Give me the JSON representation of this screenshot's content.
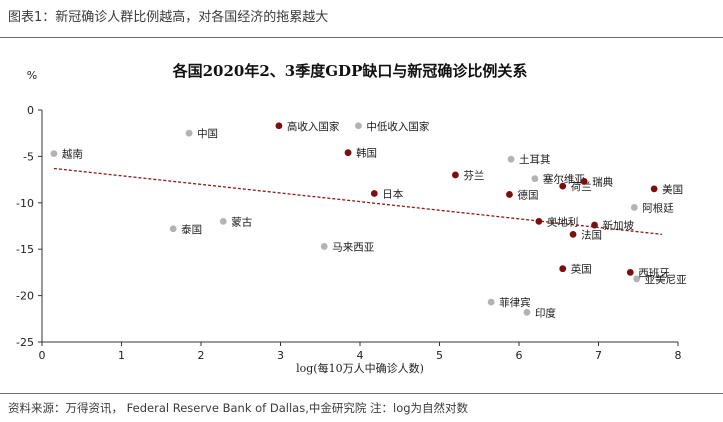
{
  "caption": "图表1：新冠确诊人群比例越高，对各国经济的拖累越大",
  "source": "资料来源：万得资讯， Federal Reserve Bank of Dallas,中金研究院 注：log为自然对数",
  "chart_data": {
    "type": "scatter",
    "title": "各国2020年2、3季度GDP缺口与新冠确诊比例关系",
    "xlabel": "log(每10万人中确诊人数)",
    "ylabel": "%",
    "xlim": [
      0,
      8
    ],
    "ylim": [
      -25,
      0
    ],
    "xticks": [
      0,
      1,
      2,
      3,
      4,
      5,
      6,
      7,
      8
    ],
    "yticks": [
      0,
      -5,
      -10,
      -15,
      -20,
      -25
    ],
    "grid": false,
    "trendline": {
      "x": [
        0.15,
        7.8
      ],
      "y": [
        -6.3,
        -13.4
      ],
      "color": "#8b1a1a"
    },
    "colors": {
      "dark": "#7b0f0f",
      "light": "#b3b3b3"
    },
    "points": [
      {
        "label": "越南",
        "x": 0.15,
        "y": -4.7,
        "group": "light"
      },
      {
        "label": "中国",
        "x": 1.85,
        "y": -2.5,
        "group": "light"
      },
      {
        "label": "泰国",
        "x": 1.65,
        "y": -12.8,
        "group": "light"
      },
      {
        "label": "蒙古",
        "x": 2.28,
        "y": -12.0,
        "group": "light"
      },
      {
        "label": "高收入国家",
        "x": 2.98,
        "y": -1.7,
        "group": "dark"
      },
      {
        "label": "中低收入国家",
        "x": 3.98,
        "y": -1.7,
        "group": "light"
      },
      {
        "label": "韩国",
        "x": 3.85,
        "y": -4.6,
        "group": "dark"
      },
      {
        "label": "日本",
        "x": 4.18,
        "y": -9.0,
        "group": "dark"
      },
      {
        "label": "马来西亚",
        "x": 3.55,
        "y": -14.7,
        "group": "light"
      },
      {
        "label": "芬兰",
        "x": 5.2,
        "y": -7.0,
        "group": "dark"
      },
      {
        "label": "土耳其",
        "x": 5.9,
        "y": -5.3,
        "group": "light"
      },
      {
        "label": "塞尔维亚",
        "x": 6.2,
        "y": -7.4,
        "group": "light"
      },
      {
        "label": "德国",
        "x": 5.88,
        "y": -9.1,
        "group": "dark"
      },
      {
        "label": "荷兰",
        "x": 6.55,
        "y": -8.2,
        "group": "dark"
      },
      {
        "label": "瑞典",
        "x": 6.82,
        "y": -7.7,
        "group": "dark"
      },
      {
        "label": "美国",
        "x": 7.7,
        "y": -8.5,
        "group": "dark"
      },
      {
        "label": "阿根廷",
        "x": 7.45,
        "y": -10.5,
        "group": "light"
      },
      {
        "label": "奥地利",
        "x": 6.25,
        "y": -12.0,
        "group": "dark"
      },
      {
        "label": "新加坡",
        "x": 6.95,
        "y": -12.4,
        "group": "dark"
      },
      {
        "label": "法国",
        "x": 6.68,
        "y": -13.4,
        "group": "dark"
      },
      {
        "label": "英国",
        "x": 6.55,
        "y": -17.1,
        "group": "dark"
      },
      {
        "label": "西班牙",
        "x": 7.4,
        "y": -17.5,
        "group": "dark"
      },
      {
        "label": "亚美尼亚",
        "x": 7.48,
        "y": -18.2,
        "group": "light"
      },
      {
        "label": "菲律宾",
        "x": 5.65,
        "y": -20.7,
        "group": "light"
      },
      {
        "label": "印度",
        "x": 6.1,
        "y": -21.8,
        "group": "light"
      }
    ]
  }
}
